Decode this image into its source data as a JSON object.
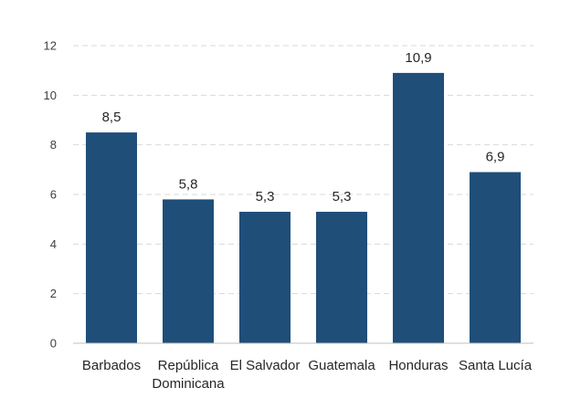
{
  "chart_data": {
    "type": "bar",
    "categories": [
      [
        "Barbados"
      ],
      [
        "República",
        "Dominicana"
      ],
      [
        "El Salvador"
      ],
      [
        "Guatemala"
      ],
      [
        "Honduras"
      ],
      [
        "Santa Lucía"
      ]
    ],
    "values": [
      8.5,
      5.8,
      5.3,
      5.3,
      10.9,
      6.9
    ],
    "data_labels": [
      "8,5",
      "5,8",
      "5,3",
      "5,3",
      "10,9",
      "6,9"
    ],
    "y_ticks": [
      0,
      2,
      4,
      6,
      8,
      10,
      12
    ],
    "ylim": [
      0,
      12
    ],
    "title": "",
    "xlabel": "",
    "ylabel": "",
    "grid": true,
    "legend": "none",
    "bar_color": "#1f4e79"
  }
}
